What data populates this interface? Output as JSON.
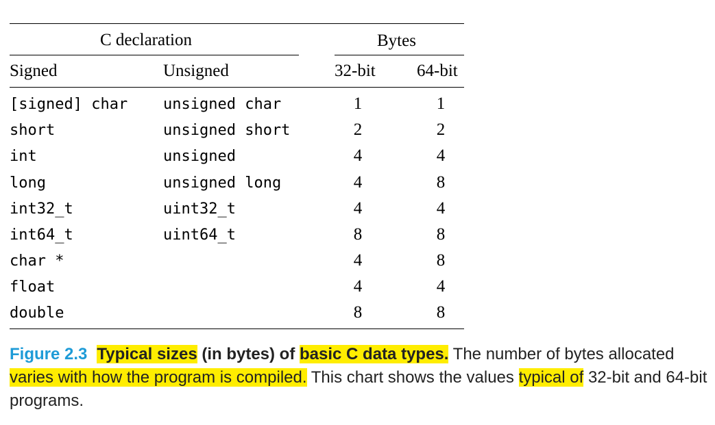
{
  "table": {
    "header_group_left": "C declaration",
    "header_group_right": "Bytes",
    "columns": [
      "Signed",
      "Unsigned",
      "32-bit",
      "64-bit"
    ],
    "rows": [
      {
        "signed": "[signed] char",
        "unsigned": "unsigned char",
        "b32": "1",
        "b64": "1"
      },
      {
        "signed": "short",
        "unsigned": "unsigned short",
        "b32": "2",
        "b64": "2"
      },
      {
        "signed": "int",
        "unsigned": "unsigned",
        "b32": "4",
        "b64": "4"
      },
      {
        "signed": "long",
        "unsigned": "unsigned long",
        "b32": "4",
        "b64": "8"
      },
      {
        "signed": "int32_t",
        "unsigned": "uint32_t",
        "b32": "4",
        "b64": "4"
      },
      {
        "signed": "int64_t",
        "unsigned": "uint64_t",
        "b32": "8",
        "b64": "8"
      },
      {
        "signed": "char *",
        "unsigned": "",
        "b32": "4",
        "b64": "8"
      },
      {
        "signed": "float",
        "unsigned": "",
        "b32": "4",
        "b64": "4"
      },
      {
        "signed": "double",
        "unsigned": "",
        "b32": "8",
        "b64": "8"
      }
    ]
  },
  "caption": {
    "label": "Figure 2.3",
    "part1": "Typical sizes",
    "part2": " (in bytes) of ",
    "part3": "basic C data types.",
    "part4": " The number of bytes allocated ",
    "part5": "varies with how the program is compiled.",
    "part6": " This chart shows the values ",
    "part7": "typical of",
    "part8": " 32-bit and 64-bit programs."
  },
  "colors": {
    "figure_label": "#1e9bd7",
    "highlight": "#ffed00"
  }
}
